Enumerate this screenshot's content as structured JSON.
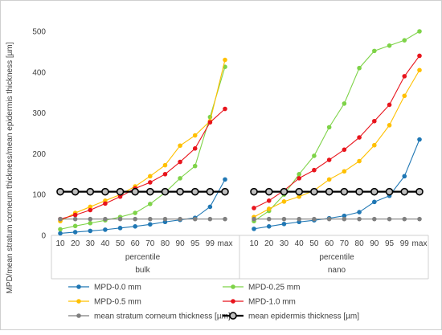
{
  "chart_data": {
    "type": "line",
    "ylabel": "MPD/mean stratum corneum thickness/mean epidermis thickness [µm]",
    "ylim": [
      0,
      500
    ],
    "yticks": [
      0,
      100,
      200,
      300,
      400,
      500
    ],
    "grid": false,
    "legend_position": "bottom",
    "groups": [
      {
        "name": "bulk",
        "sublabel": "percentile",
        "categories": [
          "10",
          "20",
          "30",
          "40",
          "50",
          "60",
          "70",
          "80",
          "90",
          "95",
          "99",
          "max"
        ]
      },
      {
        "name": "nano",
        "sublabel": "percentile",
        "categories": [
          "10",
          "20",
          "30",
          "40",
          "50",
          "60",
          "70",
          "80",
          "90",
          "95",
          "99",
          "max"
        ]
      }
    ],
    "series": [
      {
        "name": "MPD-0.0 mm",
        "color": "#1f77b4",
        "marker": "filled",
        "bulk": [
          5,
          8,
          11,
          14,
          18,
          22,
          27,
          33,
          38,
          43,
          70,
          137
        ],
        "nano": [
          16,
          22,
          28,
          33,
          37,
          42,
          48,
          57,
          82,
          97,
          145,
          235
        ]
      },
      {
        "name": "MPD-0.25 mm",
        "color": "#7ed348",
        "marker": "filled",
        "bulk": [
          15,
          23,
          30,
          37,
          45,
          55,
          77,
          105,
          140,
          170,
          290,
          413
        ],
        "nano": [
          35,
          60,
          100,
          150,
          195,
          265,
          323,
          410,
          452,
          465,
          478,
          500
        ]
      },
      {
        "name": "MPD-0.5 mm",
        "color": "#ffc000",
        "marker": "filled",
        "bulk": [
          35,
          55,
          70,
          85,
          100,
          120,
          145,
          172,
          220,
          245,
          280,
          430
        ],
        "nano": [
          45,
          65,
          83,
          95,
          110,
          137,
          157,
          182,
          221,
          270,
          342,
          405
        ]
      },
      {
        "name": "MPD-1.0 mm",
        "color": "#e8141c",
        "marker": "filled",
        "bulk": [
          40,
          50,
          62,
          78,
          95,
          115,
          130,
          150,
          180,
          213,
          277,
          310
        ],
        "nano": [
          67,
          85,
          110,
          140,
          160,
          185,
          210,
          240,
          280,
          320,
          390,
          440
        ]
      },
      {
        "name": "mean stratum corneum thickness [µm]",
        "color": "#7f7f7f",
        "marker": "filled",
        "bulk": [
          40,
          40,
          40,
          40,
          40,
          40,
          40,
          40,
          40,
          40,
          40,
          40
        ],
        "nano": [
          40,
          40,
          40,
          40,
          40,
          40,
          40,
          40,
          40,
          40,
          40,
          40
        ]
      },
      {
        "name": "mean epidermis thickness [µm]",
        "color": "#000000",
        "marker": "hollow",
        "bulk": [
          107,
          107,
          107,
          107,
          107,
          107,
          107,
          107,
          107,
          107,
          107,
          107
        ],
        "nano": [
          107,
          107,
          107,
          107,
          107,
          107,
          107,
          107,
          107,
          107,
          107,
          107
        ]
      }
    ]
  }
}
